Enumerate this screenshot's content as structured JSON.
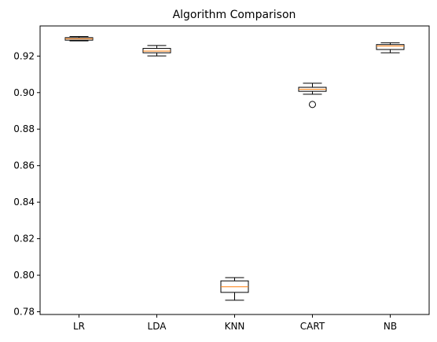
{
  "chart_data": {
    "type": "box",
    "title": "Algorithm Comparison",
    "xlabel": "",
    "ylabel": "",
    "categories": [
      "LR",
      "LDA",
      "KNN",
      "CART",
      "NB"
    ],
    "ylim": [
      0.7785,
      0.9365
    ],
    "yticks": [
      0.78,
      0.8,
      0.82,
      0.84,
      0.86,
      0.88,
      0.9,
      0.92
    ],
    "ytick_labels": [
      "0.78",
      "0.80",
      "0.82",
      "0.84",
      "0.86",
      "0.88",
      "0.90",
      "0.92"
    ],
    "grid": false,
    "legend": "none",
    "boxes": [
      {
        "name": "LR",
        "whisker_low": 0.9283,
        "q1": 0.9287,
        "median": 0.9295,
        "q3": 0.9301,
        "whisker_high": 0.9307,
        "outliers": []
      },
      {
        "name": "LDA",
        "whisker_low": 0.9201,
        "q1": 0.9218,
        "median": 0.9227,
        "q3": 0.9242,
        "whisker_high": 0.9258,
        "outliers": []
      },
      {
        "name": "KNN",
        "whisker_low": 0.7863,
        "q1": 0.7906,
        "median": 0.7937,
        "q3": 0.7969,
        "whisker_high": 0.7987,
        "outliers": []
      },
      {
        "name": "CART",
        "whisker_low": 0.8991,
        "q1": 0.9007,
        "median": 0.9018,
        "q3": 0.9029,
        "whisker_high": 0.9051,
        "outliers": [
          0.8935
        ]
      },
      {
        "name": "NB",
        "whisker_low": 0.9218,
        "q1": 0.9236,
        "median": 0.9255,
        "q3": 0.9263,
        "whisker_high": 0.9273,
        "outliers": []
      }
    ],
    "colors": {
      "box": "#000000",
      "median": "#ff7f0e",
      "axes": "#000000",
      "background": "#ffffff"
    }
  }
}
